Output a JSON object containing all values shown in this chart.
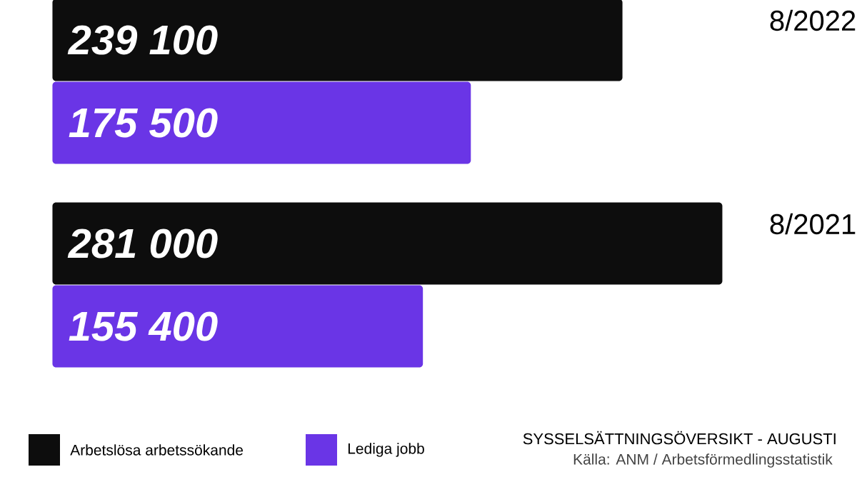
{
  "chart_data": {
    "type": "bar",
    "orientation": "horizontal",
    "title": "SYSSELSÄTTNINGSÖVERSIKT - AUGUSTI",
    "annotations": [
      "Källa: ANM / Arbetsförmedlingsstatistik"
    ],
    "categories": [
      "8/2022",
      "8/2021"
    ],
    "legend": "bottom left",
    "series": [
      {
        "name": "Arbetslösa arbetssökande",
        "color": "#0d0d0d",
        "values": [
          239100,
          281000
        ],
        "value_labels": [
          "239 100",
          "281 000"
        ]
      },
      {
        "name": "Lediga jobb",
        "color": "#6a35e6",
        "values": [
          175500,
          155400
        ],
        "value_labels": [
          "175 500",
          "155 400"
        ]
      }
    ]
  }
}
